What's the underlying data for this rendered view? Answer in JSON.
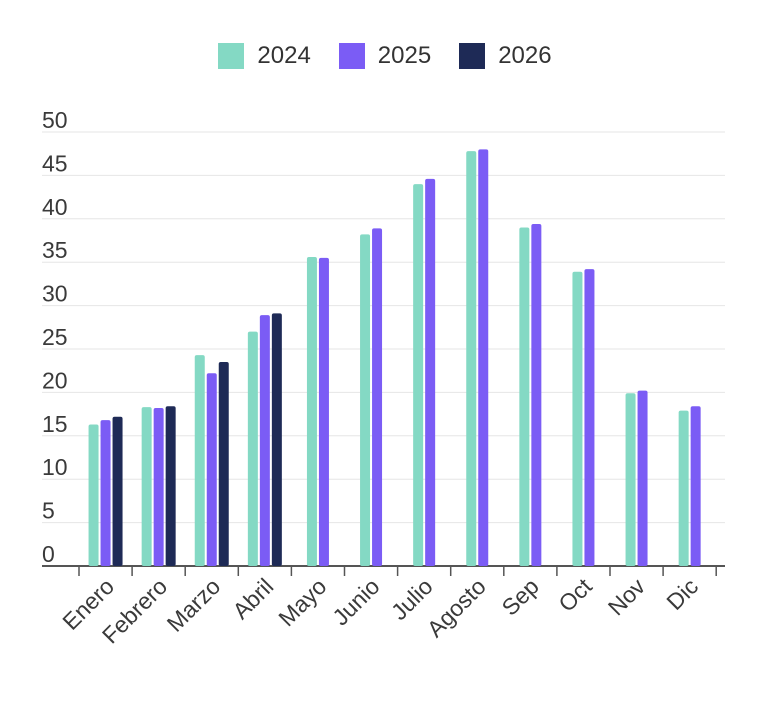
{
  "chart_data": {
    "type": "bar",
    "categories": [
      "Enero",
      "Febrero",
      "Marzo",
      "Abril",
      "Mayo",
      "Junio",
      "Julio",
      "Agosto",
      "Sep",
      "Oct",
      "Nov",
      "Dic"
    ],
    "series": [
      {
        "name": "2024",
        "color": "#84d9c4",
        "values": [
          16.3,
          18.3,
          24.3,
          27.0,
          35.6,
          38.2,
          44.0,
          47.8,
          39.0,
          33.9,
          19.9,
          17.9
        ]
      },
      {
        "name": "2025",
        "color": "#7b5cf5",
        "values": [
          16.8,
          18.2,
          22.2,
          28.9,
          35.5,
          38.9,
          44.6,
          48.0,
          39.4,
          34.2,
          20.2,
          18.4
        ]
      },
      {
        "name": "2026",
        "color": "#1e2a56",
        "values": [
          17.2,
          18.4,
          23.5,
          29.1,
          null,
          null,
          null,
          null,
          null,
          null,
          null,
          null
        ]
      }
    ],
    "yticks": [
      "0",
      "5",
      "10",
      "15",
      "20",
      "25",
      "30",
      "35",
      "40",
      "45",
      "50"
    ],
    "ylim": [
      0,
      50
    ],
    "grid": true,
    "legend_position": "top-center"
  }
}
